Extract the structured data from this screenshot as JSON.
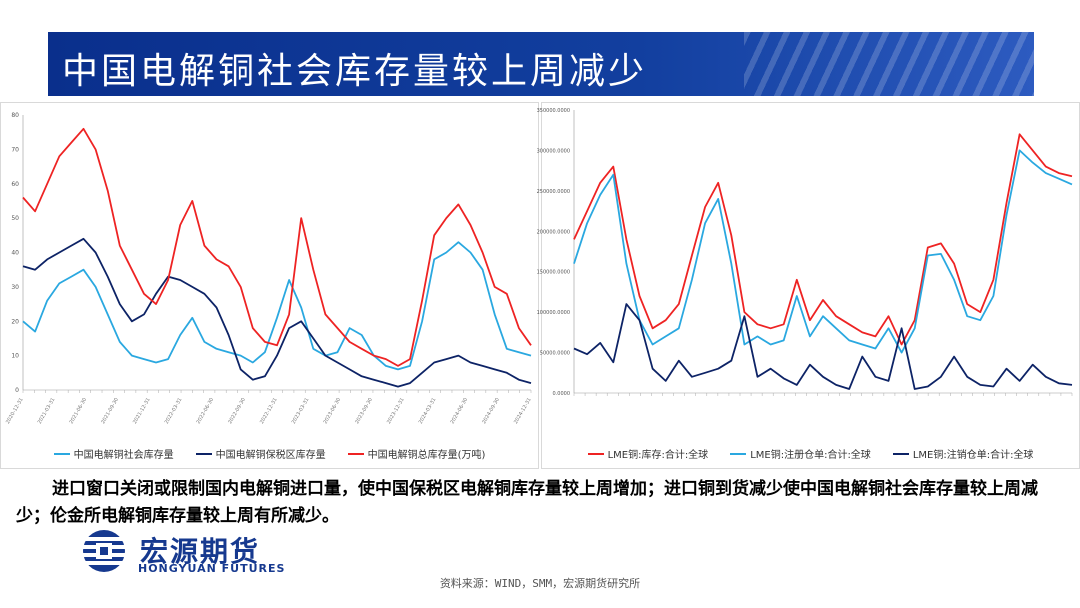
{
  "header": {
    "title": "中国电解铜社会库存量较上周减少"
  },
  "colors": {
    "title_bg": "#0a2f8c",
    "red": "#ee2323",
    "navy": "#0d2366",
    "light_blue": "#2aa8e0"
  },
  "chart_data": [
    {
      "type": "line",
      "ylim": [
        0,
        80
      ],
      "yticks": [
        "0",
        "10",
        "20",
        "30",
        "40",
        "50",
        "60",
        "70",
        "80"
      ],
      "x_range": [
        "2020-12-31",
        "2024-12-31"
      ],
      "grid": false,
      "legend_position": "bottom",
      "series": [
        {
          "name": "中国电解铜社会库存量",
          "color": "#2aa8e0",
          "values": [
            20,
            17,
            26,
            31,
            33,
            35,
            30,
            22,
            14,
            10,
            9,
            8,
            9,
            16,
            21,
            14,
            12,
            11,
            10,
            8,
            11,
            21,
            32,
            24,
            12,
            10,
            11,
            18,
            16,
            10,
            7,
            6,
            7,
            20,
            38,
            40,
            43,
            40,
            35,
            22,
            12,
            11,
            10
          ]
        },
        {
          "name": "中国电解铜保税区库存量",
          "color": "#0d2366",
          "values": [
            36,
            35,
            38,
            40,
            42,
            44,
            40,
            33,
            25,
            20,
            22,
            28,
            33,
            32,
            30,
            28,
            24,
            16,
            6,
            3,
            4,
            10,
            18,
            20,
            15,
            10,
            8,
            6,
            4,
            3,
            2,
            1,
            2,
            5,
            8,
            9,
            10,
            8,
            7,
            6,
            5,
            3,
            2
          ]
        },
        {
          "name": "中国电解铜总库存量(万吨)",
          "color": "#ee2323",
          "values": [
            56,
            52,
            60,
            68,
            72,
            76,
            70,
            58,
            42,
            35,
            28,
            25,
            32,
            48,
            55,
            42,
            38,
            36,
            30,
            18,
            14,
            13,
            22,
            50,
            35,
            22,
            18,
            14,
            12,
            10,
            9,
            7,
            9,
            26,
            45,
            50,
            54,
            48,
            40,
            30,
            28,
            18,
            13
          ]
        }
      ]
    },
    {
      "type": "line",
      "ylim": [
        0,
        350000
      ],
      "yticks": [
        "0.0000",
        "50000.0000",
        "100000.0000",
        "150000.0000",
        "200000.0000",
        "250000.0000",
        "300000.0000",
        "350000.0000"
      ],
      "grid": false,
      "legend_position": "bottom",
      "series": [
        {
          "name": "LME铜:库存:合计:全球",
          "color": "#ee2323",
          "values": [
            190000,
            225000,
            260000,
            280000,
            190000,
            120000,
            80000,
            90000,
            110000,
            170000,
            230000,
            260000,
            195000,
            100000,
            85000,
            80000,
            85000,
            140000,
            90000,
            115000,
            95000,
            85000,
            75000,
            70000,
            95000,
            60000,
            90000,
            180000,
            185000,
            160000,
            110000,
            100000,
            140000,
            235000,
            320000,
            300000,
            280000,
            272000,
            268000
          ]
        },
        {
          "name": "LME铜:注册仓单:合计:全球",
          "color": "#2aa8e0",
          "values": [
            160000,
            210000,
            245000,
            270000,
            160000,
            90000,
            60000,
            70000,
            80000,
            140000,
            210000,
            240000,
            160000,
            60000,
            70000,
            60000,
            65000,
            120000,
            70000,
            95000,
            80000,
            65000,
            60000,
            55000,
            80000,
            50000,
            80000,
            170000,
            172000,
            140000,
            95000,
            90000,
            120000,
            220000,
            300000,
            285000,
            272000,
            265000,
            258000
          ]
        },
        {
          "name": "LME铜:注销仓单:合计:全球",
          "color": "#0d2366",
          "values": [
            55000,
            48000,
            62000,
            38000,
            110000,
            90000,
            30000,
            15000,
            40000,
            20000,
            25000,
            30000,
            40000,
            95000,
            20000,
            30000,
            18000,
            10000,
            35000,
            20000,
            10000,
            5000,
            45000,
            20000,
            15000,
            80000,
            5000,
            8000,
            20000,
            45000,
            20000,
            10000,
            8000,
            30000,
            15000,
            35000,
            20000,
            12000,
            10000
          ]
        }
      ]
    }
  ],
  "legend_left": [
    "中国电解铜社会库存量",
    "中国电解铜保税区库存量",
    "中国电解铜总库存量(万吨)"
  ],
  "legend_right": [
    "LME铜:库存:合计:全球",
    "LME铜:注册仓单:合计:全球",
    "LME铜:注销仓单:合计:全球"
  ],
  "description": "进口窗口关闭或限制国内电解铜进口量，使中国保税区电解铜库存量较上周增加；进口铜到货减少使中国电解铜社会库存量较上周减少；伦金所电解铜库存量较上周有所减少。",
  "logo": {
    "cn": "宏源期货",
    "en": "HONGYUAN FUTURES"
  },
  "source": "资料来源：WIND，SMM，宏源期货研究所"
}
